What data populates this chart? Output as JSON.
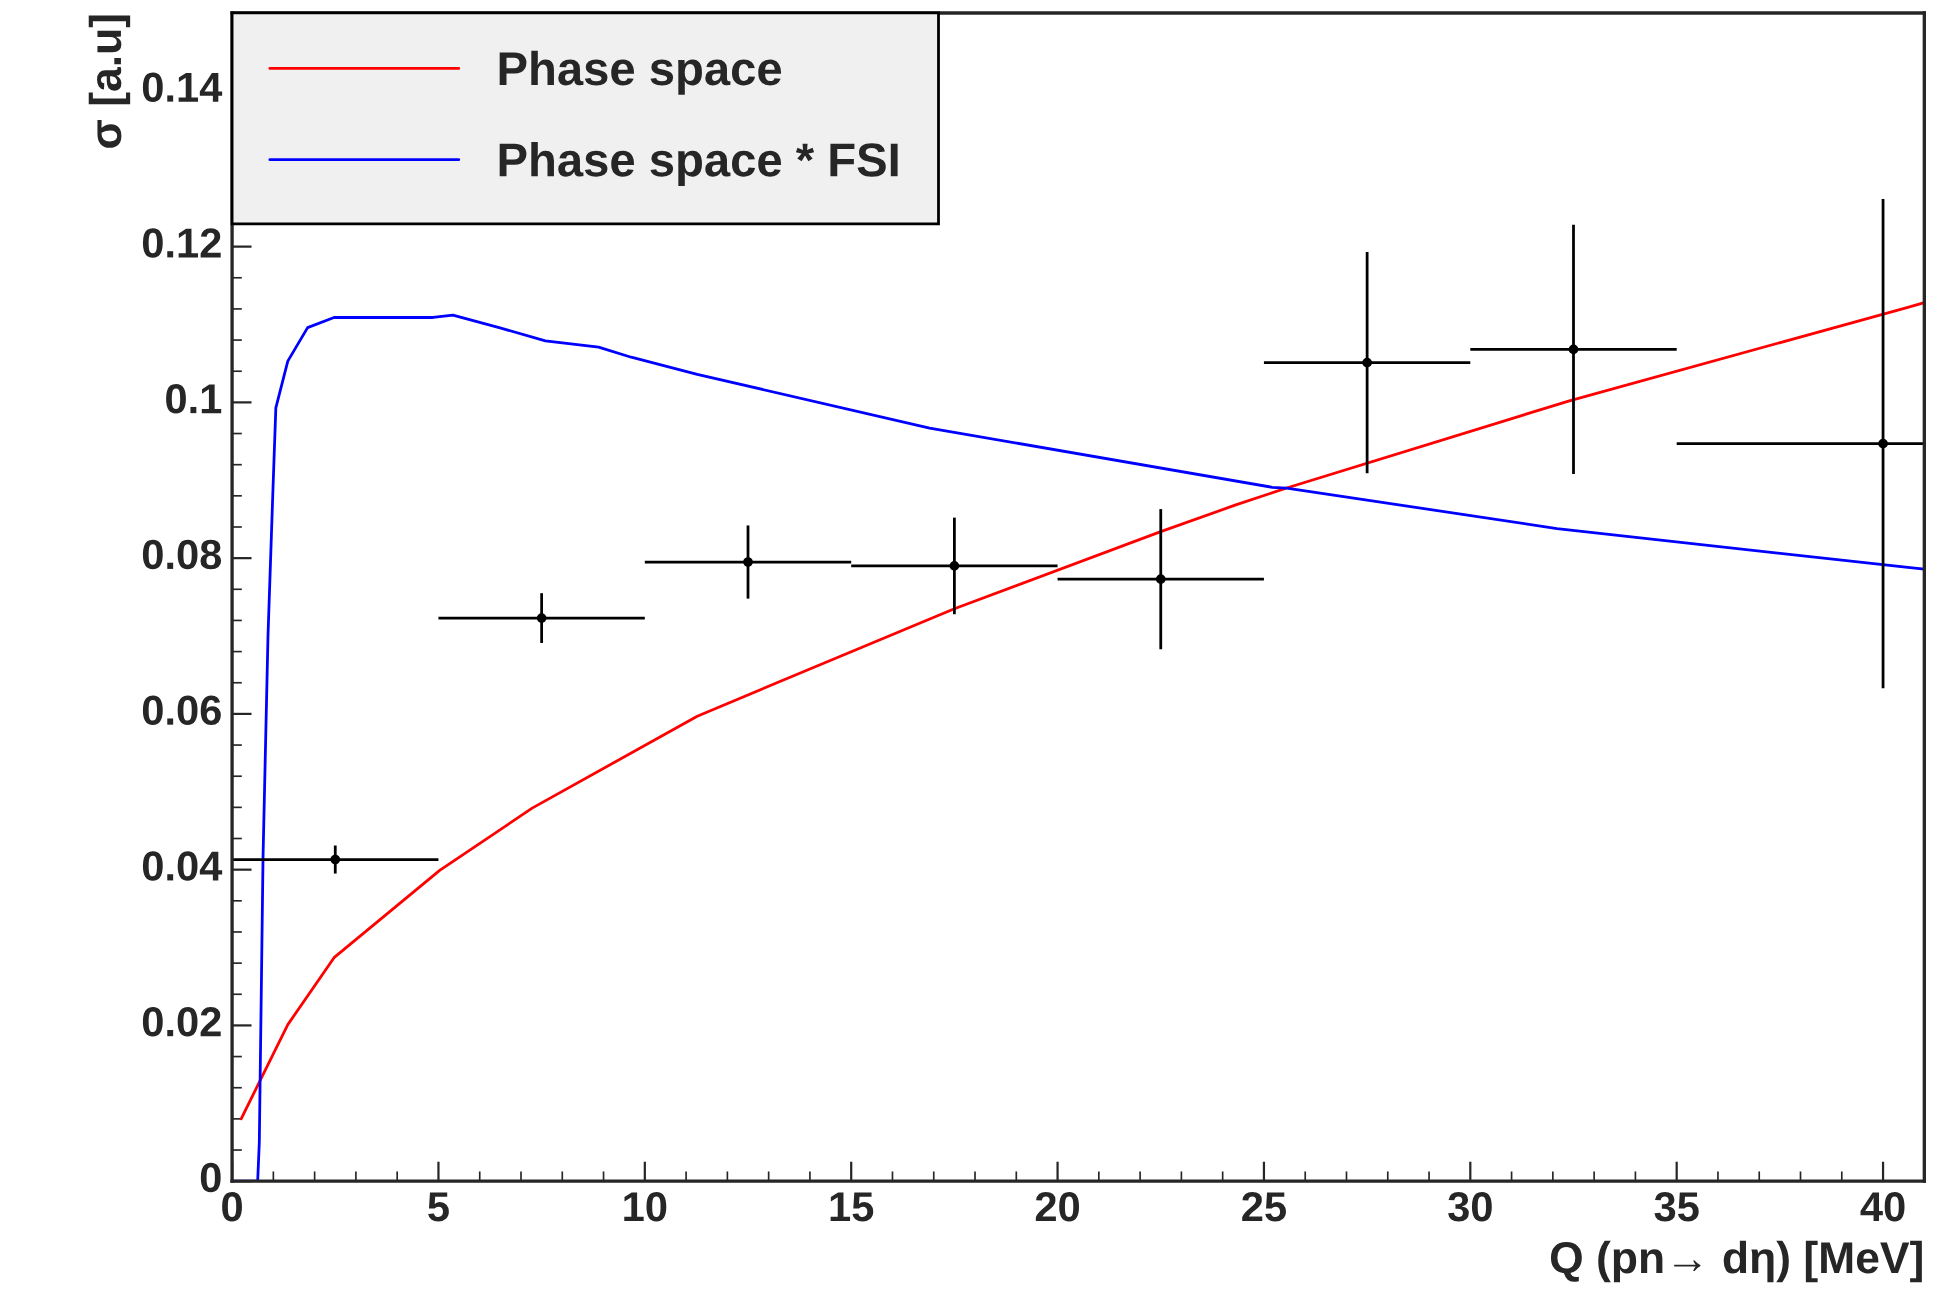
{
  "chart_data": {
    "type": "line",
    "xlabel": "Q (pn→ dη) [MeV]",
    "ylabel": "σ [a.u]",
    "xlim": [
      0,
      41
    ],
    "ylim": [
      0,
      0.15
    ],
    "xticks": [
      0,
      5,
      10,
      15,
      20,
      25,
      30,
      35,
      40
    ],
    "yticks": [
      0,
      0.02,
      0.04,
      0.06,
      0.08,
      0.1,
      0.12,
      0.14
    ],
    "grid": false,
    "legend": "top left",
    "marker": "none",
    "line_style": "solid",
    "series": [
      {
        "name": "Phase space",
        "color": "#ff0000",
        "x": [
          0.22,
          1.35,
          2.47,
          5.03,
          7.27,
          11.27,
          13.2,
          17.5,
          22.5,
          24.3,
          25.55,
          32.4,
          40.6,
          41
        ],
        "values": [
          0.008,
          0.0201,
          0.0287,
          0.0399,
          0.0479,
          0.0597,
          0.064,
          0.0735,
          0.0834,
          0.0868,
          0.089,
          0.1002,
          0.1122,
          0.1128
        ]
      },
      {
        "name": "Phase space * FSI",
        "color": "#0000ff",
        "x": [
          0,
          0.62,
          0.66,
          0.75,
          0.87,
          0.98,
          1.06,
          1.35,
          1.83,
          2.47,
          4.87,
          5.35,
          6.47,
          7.59,
          8.88,
          9.67,
          11.27,
          16.9,
          25.2,
          25.55,
          32.1,
          40.6,
          41
        ],
        "values": [
          0,
          0,
          0.005,
          0.0416,
          0.07,
          0.0872,
          0.0993,
          0.1053,
          0.1096,
          0.1109,
          0.1109,
          0.1112,
          0.1096,
          0.1079,
          0.1071,
          0.1058,
          0.1036,
          0.0967,
          0.0891,
          0.089,
          0.0838,
          0.0788,
          0.0786
        ]
      },
      {
        "color": "#000000",
        "type": "scatter",
        "marker": "circle",
        "x": [
          2.5,
          7.5,
          12.5,
          17.5,
          22.5,
          27.5,
          32.5,
          40
        ],
        "values": [
          0.0413,
          0.0723,
          0.0795,
          0.079,
          0.0773,
          0.1051,
          0.1068,
          0.0947
        ],
        "errors": [
          0.0018,
          0.0032,
          0.0047,
          0.0062,
          0.009,
          0.0142,
          0.016,
          0.0314
        ],
        "xerrors": [
          2.5,
          2.5,
          2.5,
          2.5,
          2.5,
          2.5,
          2.5,
          [
            35,
            41
          ]
        ]
      }
    ]
  }
}
